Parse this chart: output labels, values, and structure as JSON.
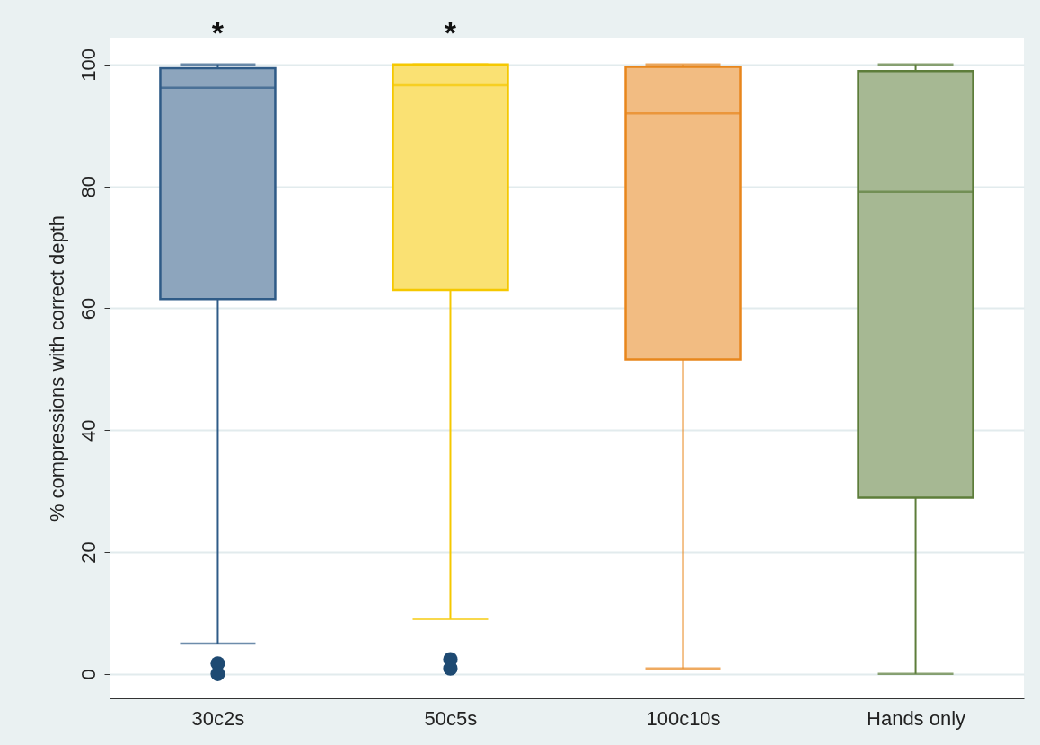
{
  "chart_data": {
    "type": "box",
    "ylabel": "% compressions with correct depth",
    "categories": [
      "30c2s",
      "50c5s",
      "100c10s",
      "Hands only"
    ],
    "ylim": [
      -4,
      104.4
    ],
    "yticks": [
      0,
      20,
      40,
      60,
      80,
      100
    ],
    "grid": "y",
    "annotations": [
      "*",
      "*"
    ],
    "series": [
      {
        "colors": [
          "#2f5b87",
          "#f5c800",
          "#e8861c",
          "#5d7d3a"
        ],
        "boxes": [
          {
            "low": 5,
            "q1": 61.5,
            "median": 96.2,
            "q3": 99.4,
            "high": 100
          },
          {
            "low": 9,
            "q1": 63,
            "median": 96.6,
            "q3": 100,
            "high": 100
          },
          {
            "low": 0.9,
            "q1": 51.6,
            "median": 92,
            "q3": 99.6,
            "high": 100
          },
          {
            "low": 0,
            "q1": 28.9,
            "median": 79.1,
            "q3": 98.9,
            "high": 100
          }
        ]
      },
      {
        "type": "scatter",
        "color": "#1e4a72",
        "marker": "circle",
        "x": [
          "30c2s",
          "30c2s",
          "50c5s",
          "50c5s"
        ],
        "values": [
          1.7,
          0,
          2.4,
          0.9
        ]
      }
    ]
  }
}
